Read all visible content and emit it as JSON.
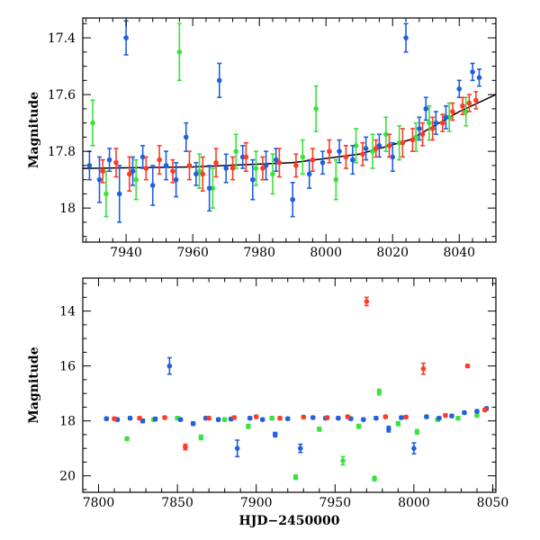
{
  "colors": {
    "blue": "#1f5fe0",
    "red": "#ff3b24",
    "green": "#39e23c",
    "trend": "#000000"
  },
  "chart_data": [
    {
      "type": "scatter",
      "panel": "top",
      "xlabel": "",
      "ylabel": "Magnitude",
      "xlim": [
        7927,
        8051
      ],
      "ylim": [
        18.12,
        17.33
      ],
      "y_inverted": true,
      "xticks": [
        7940,
        7960,
        7980,
        8000,
        8020,
        8040
      ],
      "yticks": [
        17.4,
        17.6,
        17.8,
        18.0
      ],
      "ytick_labels": [
        "17.4",
        "17.6",
        "17.8",
        "18"
      ],
      "error_bars": true,
      "trend_line": {
        "x": [
          7927,
          7960,
          7990,
          8010,
          8025,
          8040,
          8051
        ],
        "y": [
          17.86,
          17.855,
          17.84,
          17.81,
          17.76,
          17.66,
          17.6
        ]
      },
      "series": [
        {
          "color": "blue",
          "x": [
            7929,
            7932,
            7935,
            7938,
            7940,
            7942,
            7945,
            7948,
            7952,
            7955,
            7958,
            7961,
            7965,
            7968,
            7970,
            7975,
            7978,
            7982,
            7985,
            7990,
            7995,
            7999,
            8004,
            8008,
            8012,
            8016,
            8020,
            8024,
            8028,
            8030,
            8033,
            8036,
            8040,
            8044,
            8046
          ],
          "y": [
            17.85,
            17.9,
            17.83,
            17.95,
            17.4,
            17.87,
            17.82,
            17.92,
            17.85,
            17.9,
            17.75,
            17.88,
            17.93,
            17.55,
            17.86,
            17.82,
            17.9,
            17.85,
            17.83,
            17.97,
            17.88,
            17.84,
            17.8,
            17.83,
            17.79,
            17.78,
            17.82,
            17.4,
            17.72,
            17.65,
            17.7,
            17.68,
            17.58,
            17.52,
            17.54
          ],
          "err": [
            0.05,
            0.08,
            0.04,
            0.1,
            0.06,
            0.05,
            0.04,
            0.07,
            0.05,
            0.06,
            0.05,
            0.04,
            0.08,
            0.06,
            0.05,
            0.04,
            0.07,
            0.05,
            0.04,
            0.06,
            0.05,
            0.04,
            0.04,
            0.05,
            0.04,
            0.04,
            0.05,
            0.05,
            0.04,
            0.04,
            0.04,
            0.04,
            0.03,
            0.03,
            0.03
          ]
        },
        {
          "color": "red",
          "x": [
            7933,
            7937,
            7941,
            7946,
            7950,
            7954,
            7959,
            7963,
            7967,
            7972,
            7976,
            7981,
            7986,
            7991,
            7996,
            8001,
            8006,
            8011,
            8015,
            8019,
            8023,
            8026,
            8029,
            8032,
            8035,
            8038,
            8041,
            8043,
            8045
          ],
          "y": [
            17.87,
            17.84,
            17.88,
            17.86,
            17.83,
            17.87,
            17.85,
            17.88,
            17.84,
            17.86,
            17.82,
            17.86,
            17.84,
            17.85,
            17.83,
            17.8,
            17.82,
            17.81,
            17.79,
            17.78,
            17.77,
            17.76,
            17.74,
            17.72,
            17.7,
            17.66,
            17.64,
            17.63,
            17.62
          ],
          "err": [
            0.04,
            0.05,
            0.06,
            0.04,
            0.05,
            0.04,
            0.05,
            0.06,
            0.05,
            0.04,
            0.05,
            0.04,
            0.05,
            0.04,
            0.04,
            0.04,
            0.04,
            0.04,
            0.03,
            0.04,
            0.05,
            0.04,
            0.04,
            0.04,
            0.03,
            0.03,
            0.03,
            0.03,
            0.03
          ]
        },
        {
          "color": "green",
          "x": [
            7930,
            7934,
            7943,
            7956,
            7962,
            7966,
            7973,
            7979,
            7984,
            7993,
            7997,
            8003,
            8009,
            8014,
            8018,
            8022,
            8027,
            8031,
            8037,
            8042
          ],
          "y": [
            17.7,
            17.95,
            17.9,
            17.45,
            17.87,
            17.93,
            17.8,
            17.86,
            17.88,
            17.82,
            17.65,
            17.9,
            17.78,
            17.8,
            17.74,
            17.77,
            17.75,
            17.7,
            17.68,
            17.66
          ],
          "err": [
            0.08,
            0.08,
            0.07,
            0.1,
            0.06,
            0.07,
            0.06,
            0.06,
            0.07,
            0.06,
            0.08,
            0.07,
            0.06,
            0.06,
            0.06,
            0.06,
            0.05,
            0.06,
            0.05,
            0.05
          ]
        }
      ]
    },
    {
      "type": "scatter",
      "panel": "bottom",
      "xlabel": "HJD−2450000",
      "ylabel": "Magnitude",
      "xlim": [
        7790,
        8052
      ],
      "ylim": [
        20.6,
        12.8
      ],
      "y_inverted": true,
      "xticks": [
        7800,
        7850,
        7900,
        7950,
        8000,
        8050
      ],
      "yticks": [
        14,
        16,
        18,
        20
      ],
      "ytick_labels": [
        "14",
        "16",
        "18",
        "20"
      ],
      "error_bars": true,
      "series": [
        {
          "color": "blue",
          "x": [
            7805,
            7812,
            7820,
            7828,
            7836,
            7845,
            7852,
            7860,
            7868,
            7876,
            7884,
            7888,
            7896,
            7904,
            7912,
            7920,
            7928,
            7936,
            7944,
            7952,
            7960,
            7968,
            7976,
            7984,
            7992,
            8000,
            8008,
            8016,
            8024,
            8032,
            8040,
            8046
          ],
          "y": [
            17.92,
            17.95,
            17.9,
            18.0,
            17.93,
            16.0,
            17.95,
            18.1,
            17.9,
            17.95,
            17.93,
            19.0,
            17.9,
            17.95,
            18.5,
            17.92,
            19.0,
            17.88,
            17.9,
            17.9,
            17.92,
            17.95,
            17.9,
            18.3,
            17.88,
            19.0,
            17.85,
            17.9,
            17.82,
            17.7,
            17.65,
            17.55
          ],
          "err": [
            0.05,
            0.05,
            0.05,
            0.06,
            0.05,
            0.3,
            0.05,
            0.06,
            0.05,
            0.05,
            0.05,
            0.3,
            0.05,
            0.05,
            0.08,
            0.05,
            0.15,
            0.05,
            0.05,
            0.05,
            0.05,
            0.05,
            0.05,
            0.1,
            0.05,
            0.2,
            0.05,
            0.05,
            0.05,
            0.05,
            0.05,
            0.05
          ]
        },
        {
          "color": "red",
          "x": [
            7810,
            7826,
            7842,
            7855,
            7870,
            7886,
            7900,
            7915,
            7930,
            7945,
            7958,
            7970,
            7982,
            7995,
            8006,
            8020,
            8034,
            8045
          ],
          "y": [
            17.92,
            17.9,
            17.88,
            18.95,
            17.9,
            17.88,
            17.85,
            17.9,
            17.86,
            17.88,
            17.85,
            13.65,
            17.85,
            17.86,
            16.1,
            17.8,
            16.0,
            17.6
          ],
          "err": [
            0.05,
            0.05,
            0.05,
            0.1,
            0.05,
            0.05,
            0.05,
            0.05,
            0.05,
            0.05,
            0.05,
            0.15,
            0.05,
            0.05,
            0.2,
            0.05,
            0.05,
            0.05
          ]
        },
        {
          "color": "green",
          "x": [
            7818,
            7835,
            7850,
            7865,
            7880,
            7895,
            7910,
            7925,
            7940,
            7955,
            7965,
            7975,
            7978,
            7990,
            8002,
            8015,
            8028,
            8040
          ],
          "y": [
            18.65,
            17.95,
            17.9,
            18.6,
            17.95,
            18.2,
            17.9,
            20.05,
            18.3,
            19.45,
            18.2,
            20.1,
            16.95,
            18.1,
            18.4,
            17.95,
            17.9,
            17.8
          ],
          "err": [
            0.06,
            0.06,
            0.06,
            0.08,
            0.06,
            0.07,
            0.06,
            0.08,
            0.07,
            0.15,
            0.07,
            0.08,
            0.1,
            0.07,
            0.08,
            0.06,
            0.06,
            0.05
          ]
        }
      ]
    }
  ]
}
